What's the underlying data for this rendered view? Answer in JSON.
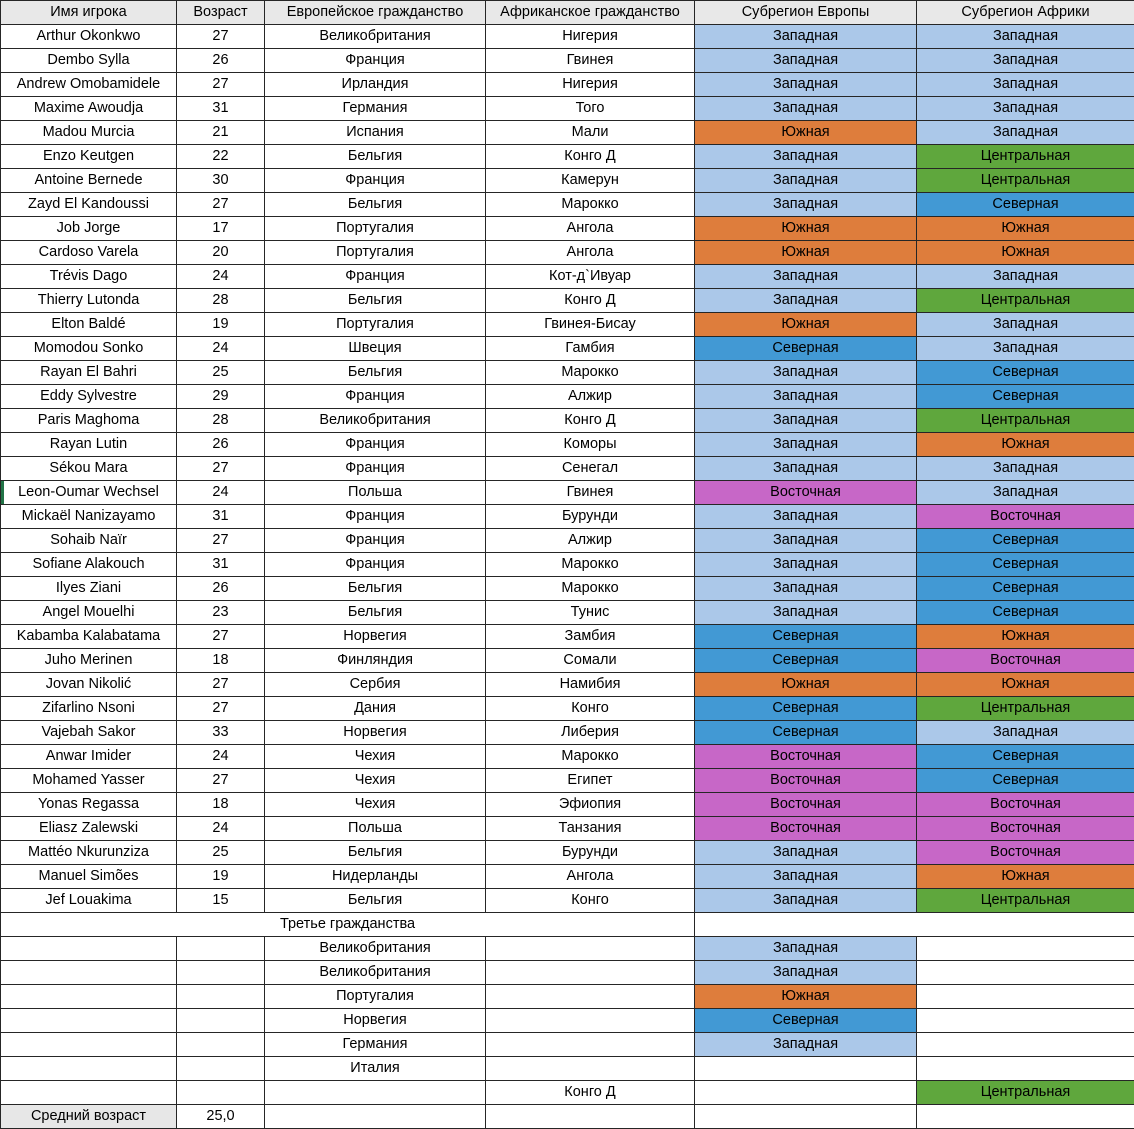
{
  "columns": [
    "Имя игрока",
    "Возраст",
    "Европейское гражданство",
    "Африканское гражданство",
    "Субрегион Европы",
    "Субрегион Африки"
  ],
  "players": [
    {
      "name": "Arthur Okonkwo",
      "age": "27",
      "euro": "Великобритания",
      "africa": "Нигерия",
      "eu_sub": "Западная",
      "af_sub": "Западная"
    },
    {
      "name": "Dembo Sylla",
      "age": "26",
      "euro": "Франция",
      "africa": "Гвинея",
      "eu_sub": "Западная",
      "af_sub": "Западная"
    },
    {
      "name": "Andrew Omobamidele",
      "age": "27",
      "euro": "Ирландия",
      "africa": "Нигерия",
      "eu_sub": "Западная",
      "af_sub": "Западная"
    },
    {
      "name": "Maxime Awoudja",
      "age": "31",
      "euro": "Германия",
      "africa": "Того",
      "eu_sub": "Западная",
      "af_sub": "Западная"
    },
    {
      "name": "Madou Murcia",
      "age": "21",
      "euro": "Испания",
      "africa": "Мали",
      "eu_sub": "Южная",
      "af_sub": "Западная"
    },
    {
      "name": "Enzo Keutgen",
      "age": "22",
      "euro": "Бельгия",
      "africa": "Конго Д",
      "eu_sub": "Западная",
      "af_sub": "Центральная"
    },
    {
      "name": "Antoine Bernede",
      "age": "30",
      "euro": "Франция",
      "africa": "Камерун",
      "eu_sub": "Западная",
      "af_sub": "Центральная"
    },
    {
      "name": "Zayd El Kandoussi",
      "age": "27",
      "euro": "Бельгия",
      "africa": "Марокко",
      "eu_sub": "Западная",
      "af_sub": "Северная"
    },
    {
      "name": "Job Jorge",
      "age": "17",
      "euro": "Португалия",
      "africa": "Ангола",
      "eu_sub": "Южная",
      "af_sub": "Южная"
    },
    {
      "name": "Cardoso Varela",
      "age": "20",
      "euro": "Португалия",
      "africa": "Ангола",
      "eu_sub": "Южная",
      "af_sub": "Южная"
    },
    {
      "name": "Trévis Dago",
      "age": "24",
      "euro": "Франция",
      "africa": "Кот-д`Ивуар",
      "eu_sub": "Западная",
      "af_sub": "Западная"
    },
    {
      "name": "Thierry Lutonda",
      "age": "28",
      "euro": "Бельгия",
      "africa": "Конго Д",
      "eu_sub": "Западная",
      "af_sub": "Центральная"
    },
    {
      "name": "Elton Baldé",
      "age": "19",
      "euro": "Португалия",
      "africa": "Гвинея-Бисау",
      "eu_sub": "Южная",
      "af_sub": "Западная"
    },
    {
      "name": "Momodou Sonko",
      "age": "24",
      "euro": "Швеция",
      "africa": "Гамбия",
      "eu_sub": "Северная",
      "af_sub": "Западная"
    },
    {
      "name": "Rayan El Bahri",
      "age": "25",
      "euro": "Бельгия",
      "africa": "Марокко",
      "eu_sub": "Западная",
      "af_sub": "Северная"
    },
    {
      "name": "Eddy Sylvestre",
      "age": "29",
      "euro": "Франция",
      "africa": "Алжир",
      "eu_sub": "Западная",
      "af_sub": "Северная"
    },
    {
      "name": "Paris Maghoma",
      "age": "28",
      "euro": "Великобритания",
      "africa": "Конго Д",
      "eu_sub": "Западная",
      "af_sub": "Центральная"
    },
    {
      "name": "Rayan Lutin",
      "age": "26",
      "euro": "Франция",
      "africa": "Коморы",
      "eu_sub": "Западная",
      "af_sub": "Южная"
    },
    {
      "name": "Sékou Mara",
      "age": "27",
      "euro": "Франция",
      "africa": "Сенегал",
      "eu_sub": "Западная",
      "af_sub": "Западная"
    },
    {
      "name": "Leon-Oumar Wechsel",
      "age": "24",
      "euro": "Польша",
      "africa": "Гвинея",
      "eu_sub": "Восточная",
      "af_sub": "Западная",
      "selected": true
    },
    {
      "name": "Mickaël Nanizayamo",
      "age": "31",
      "euro": "Франция",
      "africa": "Бурунди",
      "eu_sub": "Западная",
      "af_sub": "Восточная"
    },
    {
      "name": "Sohaib Naïr",
      "age": "27",
      "euro": "Франция",
      "africa": "Алжир",
      "eu_sub": "Западная",
      "af_sub": "Северная"
    },
    {
      "name": "Sofiane Alakouch",
      "age": "31",
      "euro": "Франция",
      "africa": "Марокко",
      "eu_sub": "Западная",
      "af_sub": "Северная"
    },
    {
      "name": "Ilyes Ziani",
      "age": "26",
      "euro": "Бельгия",
      "africa": "Марокко",
      "eu_sub": "Западная",
      "af_sub": "Северная"
    },
    {
      "name": "Angel Mouelhi",
      "age": "23",
      "euro": "Бельгия",
      "africa": "Тунис",
      "eu_sub": "Западная",
      "af_sub": "Северная"
    },
    {
      "name": "Kabamba Kalabatama",
      "age": "27",
      "euro": "Норвегия",
      "africa": "Замбия",
      "eu_sub": "Северная",
      "af_sub": "Южная"
    },
    {
      "name": "Juho Merinen",
      "age": "18",
      "euro": "Финляндия",
      "africa": "Сомали",
      "eu_sub": "Северная",
      "af_sub": "Восточная"
    },
    {
      "name": "Jovan Nikolić",
      "age": "27",
      "euro": "Сербия",
      "africa": "Намибия",
      "eu_sub": "Южная",
      "af_sub": "Южная"
    },
    {
      "name": "Zifarlino Nsoni",
      "age": "27",
      "euro": "Дания",
      "africa": "Конго",
      "eu_sub": "Северная",
      "af_sub": "Центральная"
    },
    {
      "name": "Vajebah Sakor",
      "age": "33",
      "euro": "Норвегия",
      "africa": "Либерия",
      "eu_sub": "Северная",
      "af_sub": "Западная"
    },
    {
      "name": "Anwar Imider",
      "age": "24",
      "euro": "Чехия",
      "africa": "Марокко",
      "eu_sub": "Восточная",
      "af_sub": "Северная"
    },
    {
      "name": "Mohamed Yasser",
      "age": "27",
      "euro": "Чехия",
      "africa": "Египет",
      "eu_sub": "Восточная",
      "af_sub": "Северная"
    },
    {
      "name": "Yonas Regassa",
      "age": "18",
      "euro": "Чехия",
      "africa": "Эфиопия",
      "eu_sub": "Восточная",
      "af_sub": "Восточная"
    },
    {
      "name": "Eliasz Zalewski",
      "age": "24",
      "euro": "Польша",
      "africa": "Танзания",
      "eu_sub": "Восточная",
      "af_sub": "Восточная"
    },
    {
      "name": "Mattéo Nkurunziza",
      "age": "25",
      "euro": "Бельгия",
      "africa": "Бурунди",
      "eu_sub": "Западная",
      "af_sub": "Восточная"
    },
    {
      "name": "Manuel Simões",
      "age": "19",
      "euro": "Нидерланды",
      "africa": "Ангола",
      "eu_sub": "Западная",
      "af_sub": "Южная"
    },
    {
      "name": "Jef Louakima",
      "age": "15",
      "euro": "Бельгия",
      "africa": "Конго",
      "eu_sub": "Западная",
      "af_sub": "Центральная"
    }
  ],
  "section": {
    "label": "Третье гражданства"
  },
  "third_citizenships": [
    {
      "euro": "Великобритания",
      "eu_sub": "Западная"
    },
    {
      "euro": "Великобритания",
      "eu_sub": "Западная"
    },
    {
      "euro": "Португалия",
      "eu_sub": "Южная"
    },
    {
      "euro": "Норвегия",
      "eu_sub": "Северная"
    },
    {
      "euro": "Германия",
      "eu_sub": "Западная"
    },
    {
      "euro": "Италия"
    },
    {
      "africa": "Конго Д",
      "af_sub": "Центральная"
    }
  ],
  "footer": {
    "label": "Средний возраст",
    "value": "25,0"
  },
  "subregion_colors": {
    "Западная": "#abc8e9",
    "Южная": "#de7d3c",
    "Северная": "#4299d4",
    "Восточная": "#c767c7",
    "Центральная": "#5fa73d"
  },
  "ui_colors": {
    "header_bg": "#e8e8e8",
    "footer_label_bg": "#e7e7e7",
    "border": "#262626",
    "selection_green": "#217346"
  }
}
